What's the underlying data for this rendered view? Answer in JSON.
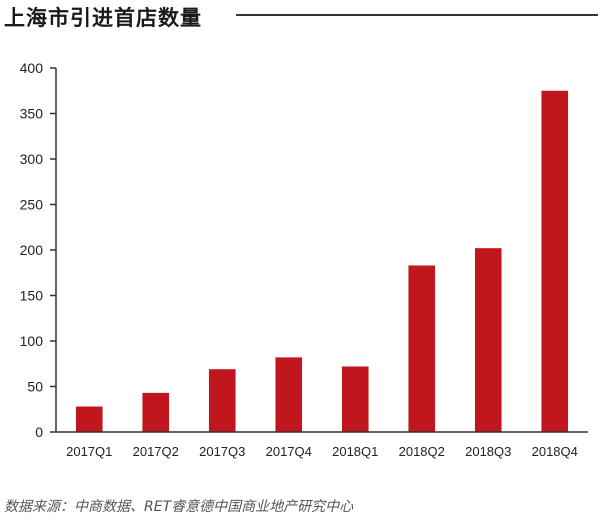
{
  "header": {
    "title": "上海市引进首店数量"
  },
  "footer": {
    "source": "数据来源：中商数据、RET睿意德中国商业地产研究中心"
  },
  "chart_data": {
    "type": "bar",
    "title": "上海市引进首店数量",
    "xlabel": "",
    "ylabel": "",
    "categories": [
      "2017Q1",
      "2017Q2",
      "2017Q3",
      "2017Q4",
      "2018Q1",
      "2018Q2",
      "2018Q3",
      "2018Q4"
    ],
    "values": [
      28,
      43,
      69,
      82,
      72,
      183,
      202,
      375
    ],
    "ylim": [
      0,
      400
    ],
    "yticks": [
      0,
      50,
      100,
      150,
      200,
      250,
      300,
      350,
      400
    ],
    "grid": false,
    "legend": "none",
    "bar_color": "#c0171e",
    "axis_color": "#333333"
  }
}
